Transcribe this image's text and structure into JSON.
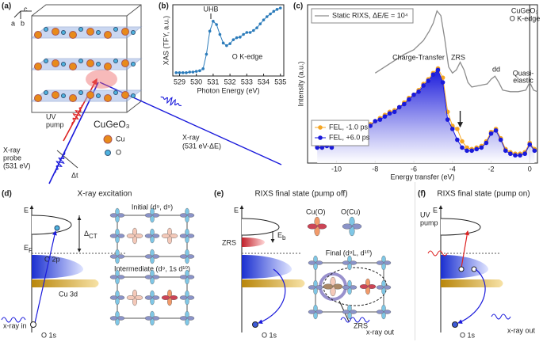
{
  "panels": {
    "a": {
      "label": "(a)",
      "axes": [
        "c",
        "a",
        "b"
      ],
      "pump": [
        "UV",
        "pump"
      ],
      "compound": "CuGeO₃",
      "legend": [
        "Cu",
        "O"
      ],
      "probe": [
        "X-ray",
        "probe",
        "(531 eV)"
      ],
      "delay": "Δt",
      "scattered": [
        "X-ray",
        "(531 eV-ΔE)"
      ]
    },
    "d": {
      "label": "(d)",
      "title": "X-ray excitation",
      "energy": "E",
      "fermi": [
        "E",
        "F"
      ],
      "gap": [
        "Δ",
        "CT"
      ],
      "o2p": "O 2p",
      "cu3d": "Cu 3d",
      "xray": "x-ray in",
      "core": "O 1s",
      "initial": "Initial (d⁹, d⁹)",
      "intermediate": "Intermediate (d⁹, 1s d¹⁰)"
    },
    "e": {
      "label": "(e)",
      "title": "RIXS final state (pump off)",
      "energy": "E",
      "zrs": "ZRS",
      "binding": [
        "E",
        "b"
      ],
      "cuo": "Cu(O)",
      "ocu": "O(Cu)",
      "final": "Final (d⁹L, d¹⁰)",
      "zrs2": "ZRS",
      "core": "O 1s",
      "xray": "x-ray out"
    },
    "f": {
      "label": "(f)",
      "title": "RIXS final state (pump on)",
      "energy": "E",
      "pump": [
        "UV",
        "pump"
      ],
      "core": "O 1s",
      "xray": "x-ray out"
    }
  },
  "chart_data": [
    {
      "type": "line",
      "panel_label": "(b)",
      "xlabel": "Photon Energy (eV)",
      "ylabel": "XAS (TFY, a.u.)",
      "xlim": [
        528.6,
        535.2
      ],
      "ylim": [
        -0.03,
        1.05
      ],
      "xticks": [
        529,
        530,
        531,
        532,
        533,
        534,
        535
      ],
      "x": [
        528.8,
        529,
        529.2,
        529.4,
        529.6,
        529.8,
        530,
        530.2,
        530.4,
        530.6,
        530.8,
        531,
        531.2,
        531.4,
        531.6,
        531.8,
        532,
        532.2,
        532.4,
        532.6,
        532.8,
        533,
        533.2,
        533.4,
        533.6,
        533.8,
        534,
        534.2,
        534.4,
        534.6,
        534.8,
        535
      ],
      "series": [
        {
          "color": "#2b7bba",
          "marker": true,
          "values": [
            0.02,
            0.02,
            0.02,
            0.02,
            0.03,
            0.03,
            0.04,
            0.05,
            0.08,
            0.3,
            0.65,
            0.8,
            0.75,
            0.6,
            0.47,
            0.43,
            0.46,
            0.52,
            0.55,
            0.56,
            0.6,
            0.63,
            0.63,
            0.66,
            0.7,
            0.76,
            0.82,
            0.87,
            0.91,
            0.95,
            0.98,
            1.0
          ]
        }
      ],
      "annotations": [
        "UHB",
        "O K-edge"
      ]
    },
    {
      "type": "line",
      "panel_label": "(c)",
      "xlabel": "Energy transfer (eV)",
      "ylabel": "Intensity (a.u.)",
      "xlim": [
        -11.5,
        0.4
      ],
      "ylim": [
        0,
        1.02
      ],
      "xticks": [
        -10,
        -8,
        -6,
        -4,
        -2,
        0
      ],
      "x": [
        -11,
        -10.75,
        -10.5,
        -10.25,
        -10,
        -9.75,
        -9.5,
        -9.25,
        -9,
        -8.75,
        -8.5,
        -8.25,
        -8,
        -7.75,
        -7.5,
        -7.25,
        -7,
        -6.75,
        -6.5,
        -6.25,
        -6,
        -5.75,
        -5.5,
        -5.25,
        -5,
        -4.75,
        -4.5,
        -4.25,
        -4,
        -3.75,
        -3.5,
        -3.25,
        -3,
        -2.75,
        -2.5,
        -2.25,
        -2,
        -1.75,
        -1.5,
        -1.25,
        -1,
        -0.75,
        -0.5,
        -0.25,
        0,
        0.25
      ],
      "series": [
        {
          "name": "Static RIXS, ΔE/E = 10⁴",
          "color": "#8c8c8c",
          "x": [
            -8,
            -7.5,
            -7,
            -6.5,
            -6,
            -5.5,
            -5.2,
            -5,
            -4.8,
            -4.6,
            -4.4,
            -4.2,
            -4,
            -3.8,
            -3.6,
            -3.4,
            -3.2,
            -3,
            -2.6,
            -2.2,
            -2,
            -1.8,
            -1.6,
            -1.4,
            -1,
            -0.6,
            -0.2,
            0,
            0.2,
            0.4
          ],
          "values": [
            0.58,
            0.62,
            0.66,
            0.7,
            0.73,
            0.79,
            0.85,
            0.9,
            0.98,
            0.95,
            0.8,
            0.62,
            0.58,
            0.6,
            0.65,
            0.6,
            0.52,
            0.49,
            0.5,
            0.51,
            0.54,
            0.56,
            0.52,
            0.47,
            0.46,
            0.46,
            0.47,
            0.52,
            0.47,
            0.46
          ]
        },
        {
          "name": "FEL, -1.0 ps",
          "color": "#f5a623",
          "marker": true,
          "values": [
            0.11,
            0.1,
            0.12,
            0.11,
            0.14,
            0.15,
            0.14,
            0.17,
            0.19,
            0.2,
            0.23,
            0.25,
            0.27,
            0.29,
            0.31,
            0.33,
            0.34,
            0.36,
            0.39,
            0.42,
            0.44,
            0.47,
            0.51,
            0.54,
            0.58,
            0.61,
            0.55,
            0.33,
            0.24,
            0.22,
            0.14,
            0.1,
            0.09,
            0.1,
            0.11,
            0.14,
            0.2,
            0.22,
            0.16,
            0.09,
            0.07,
            0.06,
            0.06,
            0.07,
            0.13,
            0.09
          ]
        },
        {
          "name": "FEL, +6.0 ps",
          "color": "#1a1adb",
          "marker": true,
          "fill": true,
          "values": [
            0.1,
            0.1,
            0.11,
            0.1,
            0.13,
            0.14,
            0.13,
            0.16,
            0.18,
            0.2,
            0.22,
            0.24,
            0.27,
            0.28,
            0.3,
            0.32,
            0.33,
            0.36,
            0.38,
            0.41,
            0.44,
            0.46,
            0.5,
            0.53,
            0.57,
            0.6,
            0.52,
            0.28,
            0.22,
            0.15,
            0.1,
            0.08,
            0.08,
            0.09,
            0.1,
            0.13,
            0.19,
            0.21,
            0.15,
            0.08,
            0.06,
            0.05,
            0.05,
            0.06,
            0.12,
            0.08
          ]
        }
      ],
      "annotations": [
        "Charge-Transfer",
        "ZRS",
        "dd",
        "Quasi-",
        "elastic",
        "CuGeO₃",
        "O K-edge"
      ]
    }
  ]
}
